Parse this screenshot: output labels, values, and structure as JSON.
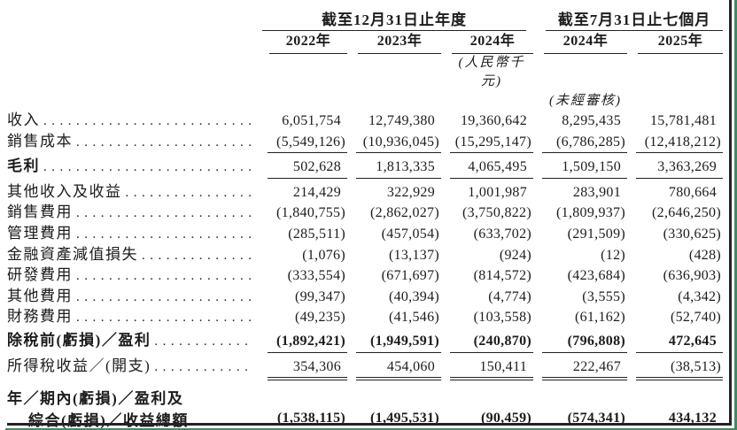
{
  "header": {
    "group1_title": "截至12月31日止年度",
    "group2_title": "截至7月31日止七個月",
    "years": [
      "2022年",
      "2023年",
      "2024年",
      "2024年",
      "2025年"
    ],
    "unit_note": "(人民幣千元)",
    "unaudited_note": "(未經審核)"
  },
  "misc": {
    "leader": "................................................................",
    "short_leader": ". . . ."
  },
  "rows": [
    {
      "label": "收入",
      "values": [
        "6,051,754",
        "12,749,380",
        "19,360,642",
        "8,295,435",
        "15,781,481"
      ]
    },
    {
      "label": "銷售成本",
      "values": [
        "(5,549,126)",
        "(10,936,045)",
        "(15,295,147)",
        "(6,786,285)",
        "(12,418,212)"
      ]
    },
    {
      "label": "毛利",
      "values": [
        "502,628",
        "1,813,335",
        "4,065,495",
        "1,509,150",
        "3,363,269"
      ]
    },
    {
      "label": "其他收入及收益",
      "values": [
        "214,429",
        "322,929",
        "1,001,987",
        "283,901",
        "780,664"
      ]
    },
    {
      "label": "銷售費用",
      "values": [
        "(1,840,755)",
        "(2,862,027)",
        "(3,750,822)",
        "(1,809,937)",
        "(2,646,250)"
      ]
    },
    {
      "label": "管理費用",
      "values": [
        "(285,511)",
        "(457,054)",
        "(633,702)",
        "(291,509)",
        "(330,625)"
      ]
    },
    {
      "label": "金融資產減值損失",
      "values": [
        "(1,076)",
        "(13,137)",
        "(924)",
        "(12)",
        "(428)"
      ]
    },
    {
      "label": "研發費用",
      "values": [
        "(333,554)",
        "(671,697)",
        "(814,572)",
        "(423,684)",
        "(636,903)"
      ]
    },
    {
      "label": "其他費用",
      "values": [
        "(99,347)",
        "(40,394)",
        "(4,774)",
        "(3,555)",
        "(4,342)"
      ]
    },
    {
      "label": "財務費用",
      "values": [
        "(49,235)",
        "(41,546)",
        "(103,558)",
        "(61,162)",
        "(52,740)"
      ]
    },
    {
      "label": "除稅前(虧損)／盈利",
      "values": [
        "(1,892,421)",
        "(1,949,591)",
        "(240,870)",
        "(796,808)",
        "472,645"
      ]
    },
    {
      "label": "所得稅收益／(開支)",
      "values": [
        "354,306",
        "454,060",
        "150,411",
        "222,467",
        "(38,513)"
      ]
    }
  ],
  "total_row": {
    "label_line1": "年／期內(虧損)／盈利及",
    "label_line2": "綜合(虧損)／收益總額",
    "values": [
      "(1,538,115)",
      "(1,495,531)",
      "(90,459)",
      "(574,341)",
      "434,132"
    ]
  }
}
